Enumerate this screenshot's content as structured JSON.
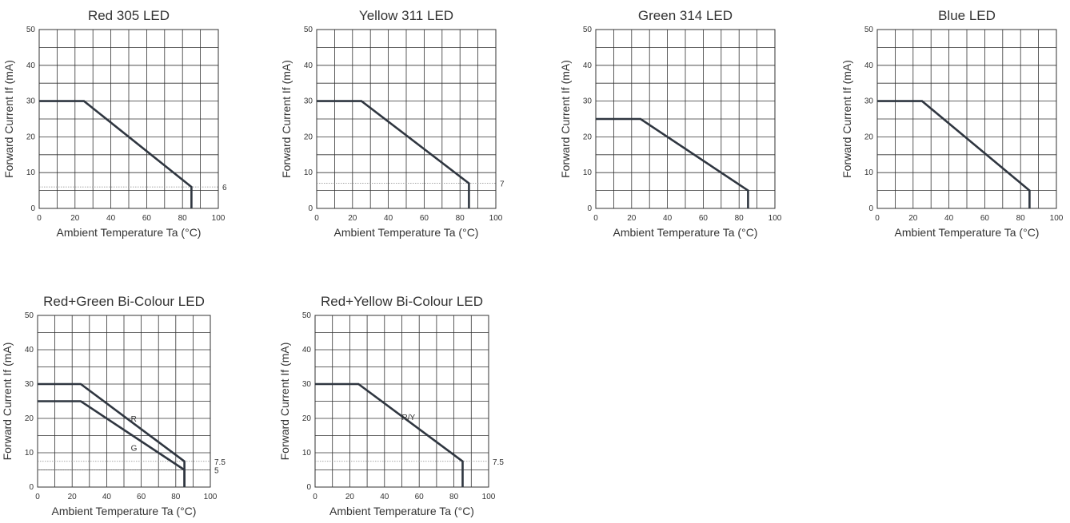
{
  "colors": {
    "curve": "#2f3640",
    "grid": "#333333",
    "reference": "#888888",
    "text": "#333333"
  },
  "chart_data": [
    {
      "type": "line",
      "title": "Red 305 LED",
      "xlabel": "Ambient Temperature Ta (°C)",
      "ylabel": "Forward Current If (mA)",
      "xlim": [
        0,
        100
      ],
      "ylim": [
        0,
        50
      ],
      "xticks": [
        "0",
        "20",
        "40",
        "60",
        "80",
        "100"
      ],
      "yticks": [
        "0",
        "10",
        "20",
        "30",
        "40",
        "50"
      ],
      "grid": true,
      "series": [
        {
          "x": [
            0,
            25,
            85,
            85
          ],
          "y": [
            30,
            30,
            6,
            0
          ]
        }
      ],
      "reference_lines": [
        {
          "y": 6,
          "label": "6"
        }
      ],
      "annotations": []
    },
    {
      "type": "line",
      "title": "Yellow 311 LED",
      "xlabel": "Ambient Temperature Ta (°C)",
      "ylabel": "Forward Current If (mA)",
      "xlim": [
        0,
        100
      ],
      "ylim": [
        0,
        50
      ],
      "xticks": [
        "0",
        "20",
        "40",
        "60",
        "80",
        "100"
      ],
      "yticks": [
        "0",
        "10",
        "20",
        "30",
        "40",
        "50"
      ],
      "grid": true,
      "series": [
        {
          "x": [
            0,
            25,
            85,
            85
          ],
          "y": [
            30,
            30,
            7,
            0
          ]
        }
      ],
      "reference_lines": [
        {
          "y": 7,
          "label": "7"
        }
      ],
      "annotations": []
    },
    {
      "type": "line",
      "title": "Green 314 LED",
      "xlabel": "Ambient Temperature Ta (°C)",
      "ylabel": "Forward Current If (mA)",
      "xlim": [
        0,
        100
      ],
      "ylim": [
        0,
        50
      ],
      "xticks": [
        "0",
        "20",
        "40",
        "60",
        "80",
        "100"
      ],
      "yticks": [
        "0",
        "10",
        "20",
        "30",
        "40",
        "50"
      ],
      "grid": true,
      "series": [
        {
          "x": [
            0,
            25,
            85,
            85
          ],
          "y": [
            25,
            25,
            5,
            0
          ]
        }
      ],
      "reference_lines": [],
      "annotations": []
    },
    {
      "type": "line",
      "title": "Blue LED",
      "xlabel": "Ambient Temperature Ta (°C)",
      "ylabel": "Forward Current If (mA)",
      "xlim": [
        0,
        100
      ],
      "ylim": [
        0,
        50
      ],
      "xticks": [
        "0",
        "20",
        "40",
        "60",
        "80",
        "100"
      ],
      "yticks": [
        "0",
        "10",
        "20",
        "30",
        "40",
        "50"
      ],
      "grid": true,
      "series": [
        {
          "x": [
            0,
            25,
            85,
            85
          ],
          "y": [
            30,
            30,
            5,
            0
          ]
        }
      ],
      "reference_lines": [],
      "annotations": []
    },
    {
      "type": "line",
      "title": "Red+Green Bi-Colour LED",
      "xlabel": "Ambient Temperature Ta (°C)",
      "ylabel": "Forward Current If (mA)",
      "xlim": [
        0,
        100
      ],
      "ylim": [
        0,
        50
      ],
      "xticks": [
        "0",
        "20",
        "40",
        "60",
        "80",
        "100"
      ],
      "yticks": [
        "0",
        "10",
        "20",
        "30",
        "40",
        "50"
      ],
      "grid": true,
      "series": [
        {
          "x": [
            0,
            25,
            85,
            85
          ],
          "y": [
            30,
            30,
            7.5,
            0
          ]
        },
        {
          "x": [
            0,
            25,
            85,
            85
          ],
          "y": [
            25,
            25,
            5,
            0
          ]
        }
      ],
      "reference_lines": [
        {
          "y": 7.5,
          "label": "7.5"
        },
        {
          "y": 5,
          "label": "5"
        }
      ],
      "annotations": [
        {
          "text": "R",
          "x": 54,
          "y": 20
        },
        {
          "text": "G",
          "x": 54,
          "y": 11.5
        }
      ]
    },
    {
      "type": "line",
      "title": "Red+Yellow Bi-Colour LED",
      "xlabel": "Ambient Temperature Ta (°C)",
      "ylabel": "Forward Current If (mA)",
      "xlim": [
        0,
        100
      ],
      "ylim": [
        0,
        50
      ],
      "xticks": [
        "0",
        "20",
        "40",
        "60",
        "80",
        "100"
      ],
      "yticks": [
        "0",
        "10",
        "20",
        "30",
        "40",
        "50"
      ],
      "grid": true,
      "series": [
        {
          "x": [
            0,
            25,
            85,
            85
          ],
          "y": [
            30,
            30,
            7.5,
            0
          ]
        }
      ],
      "reference_lines": [
        {
          "y": 7.5,
          "label": "7.5"
        }
      ],
      "annotations": [
        {
          "text": "R/Y",
          "x": 50,
          "y": 20.5
        }
      ]
    }
  ]
}
